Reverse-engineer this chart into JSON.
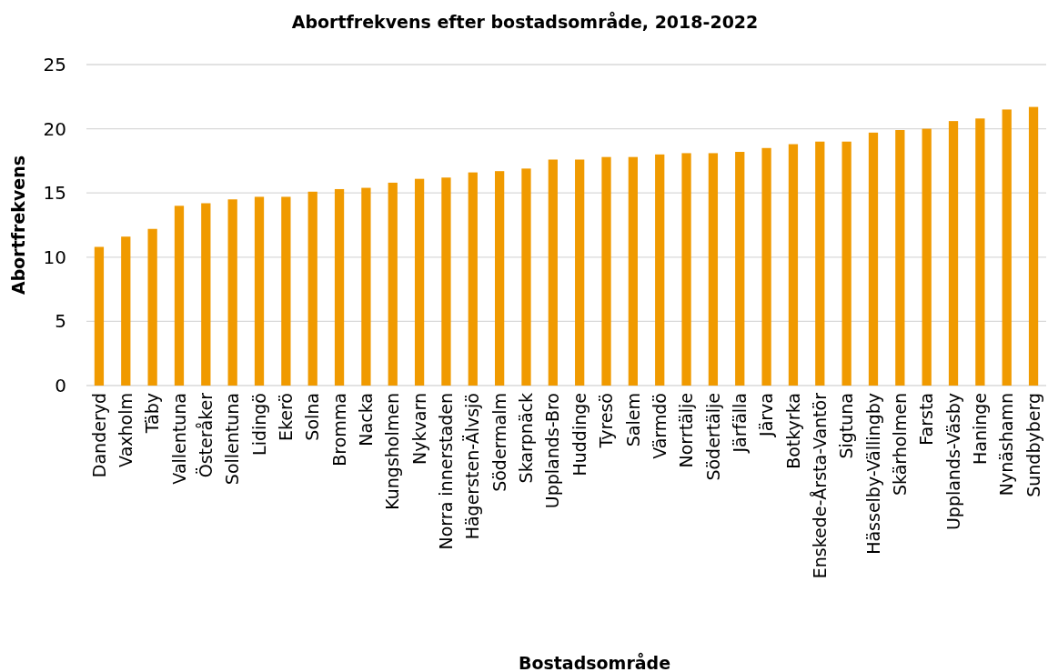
{
  "chart_data": {
    "type": "bar",
    "title": "Abortfrekvens efter bostadsområde, 2018-2022",
    "xlabel": "Bostadsområde",
    "ylabel": "Abortfrekvens",
    "categories": [
      "Danderyd",
      "Vaxholm",
      "Täby",
      "Vallentuna",
      "Österåker",
      "Sollentuna",
      "Lidingö",
      "Ekerö",
      "Solna",
      "Bromma",
      "Nacka",
      "Kungsholmen",
      "Nykvarn",
      "Norra innerstaden",
      "Hägersten-Älvsjö",
      "Södermalm",
      "Skarpnäck",
      "Upplands-Bro",
      "Huddinge",
      "Tyresö",
      "Salem",
      "Värmdö",
      "Norrtälje",
      "Södertälje",
      "Järfälla",
      "Järva",
      "Botkyrka",
      "Enskede-Årsta-Vantör",
      "Sigtuna",
      "Hässelby-Vällingby",
      "Skärholmen",
      "Farsta",
      "Upplands-Väsby",
      "Haninge",
      "Nynäshamn",
      "Sundbyberg"
    ],
    "values": [
      10.8,
      11.6,
      12.2,
      14.0,
      14.2,
      14.5,
      14.7,
      14.7,
      15.1,
      15.3,
      15.4,
      15.8,
      16.1,
      16.2,
      16.6,
      16.7,
      16.9,
      17.6,
      17.6,
      17.8,
      17.8,
      18.0,
      18.1,
      18.1,
      18.2,
      18.5,
      18.8,
      19.0,
      19.0,
      19.7,
      19.9,
      20.0,
      20.6,
      20.8,
      21.5,
      21.7
    ],
    "color": "#f09a00",
    "ylim": [
      0,
      25
    ],
    "yticks": [
      0,
      5,
      10,
      15,
      20,
      25
    ],
    "grid": "y"
  }
}
